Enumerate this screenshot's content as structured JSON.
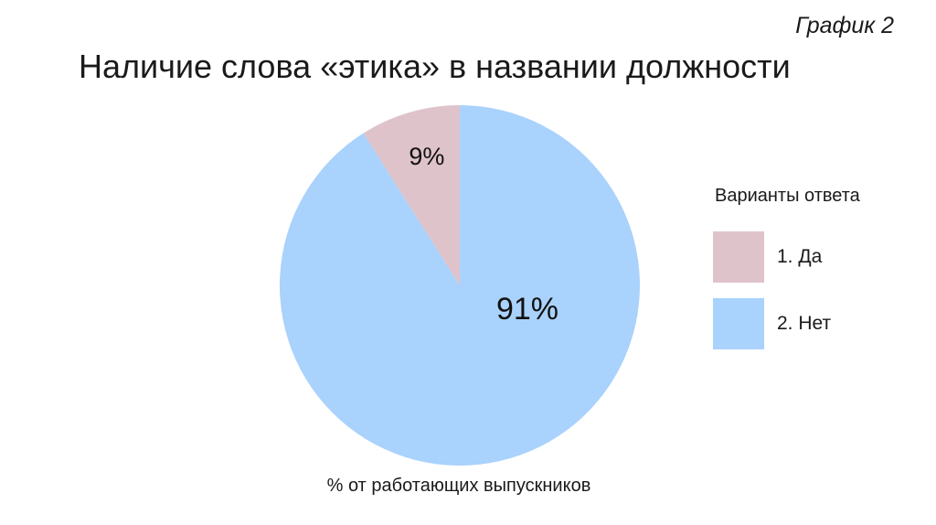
{
  "chart_number": "График 2",
  "chart_data": {
    "type": "pie",
    "title": "Наличие слова «этика» в названии должности",
    "categories": [
      "1. Да",
      "2. Нет"
    ],
    "values": [
      9,
      91
    ],
    "labels": [
      "9%",
      "91%"
    ],
    "colors": [
      "#dfc3cb",
      "#a9d2fc"
    ],
    "legend_title": "Варианты ответа",
    "legend_position": "right",
    "caption": "% от работающих выпускников"
  }
}
